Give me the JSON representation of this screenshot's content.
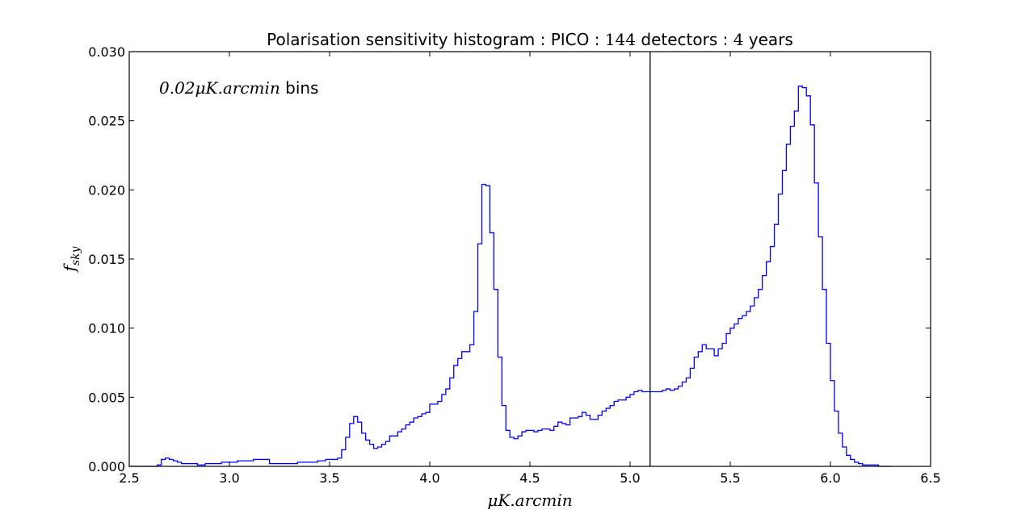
{
  "chart_data": {
    "type": "line",
    "title_parts": [
      "Polarisation sensitivity histogram : PICO : ",
      "144",
      " detectors : ",
      "4",
      " years"
    ],
    "xlabel": "μK.arcmin",
    "ylabel_main": "f",
    "ylabel_sub": "sky",
    "annotation_math": "0.02μK.arcmin",
    "annotation_text": " bins",
    "xlim": [
      2.5,
      6.5
    ],
    "ylim": [
      0.0,
      0.03
    ],
    "xticks": [
      "2.5",
      "3.0",
      "3.5",
      "4.0",
      "4.5",
      "5.0",
      "5.5",
      "6.0",
      "6.5"
    ],
    "yticks": [
      "0.000",
      "0.005",
      "0.010",
      "0.015",
      "0.020",
      "0.025",
      "0.030"
    ],
    "vline_x": 5.1,
    "bin_start": 2.5,
    "bin_width": 0.02,
    "series": [
      {
        "color": "#0000ff",
        "values": [
          0,
          0,
          0,
          0,
          0,
          0,
          0,
          0.0001,
          0.0005,
          0.0006,
          0.0005,
          0.0004,
          0.0003,
          0.0002,
          0.0002,
          0.0002,
          0.0002,
          0.0001,
          0.0001,
          0.0002,
          0.0002,
          0.0002,
          0.0002,
          0.0003,
          0.0003,
          0.0003,
          0.0003,
          0.0004,
          0.0004,
          0.0004,
          0.0004,
          0.0005,
          0.0005,
          0.0005,
          0.0005,
          0.0002,
          0.0002,
          0.0002,
          0.0002,
          0.0002,
          0.0002,
          0.0002,
          0.0003,
          0.0003,
          0.0003,
          0.0003,
          0.0003,
          0.0004,
          0.0004,
          0.0005,
          0.0005,
          0.0005,
          0.0006,
          0.0012,
          0.0021,
          0.0031,
          0.0036,
          0.0032,
          0.0024,
          0.0019,
          0.0016,
          0.0013,
          0.0014,
          0.0016,
          0.0018,
          0.0022,
          0.0022,
          0.0025,
          0.0027,
          0.003,
          0.0032,
          0.0035,
          0.0036,
          0.0038,
          0.0039,
          0.0045,
          0.0045,
          0.0047,
          0.0052,
          0.0056,
          0.0064,
          0.0073,
          0.0078,
          0.0083,
          0.0083,
          0.0088,
          0.0112,
          0.0161,
          0.0204,
          0.0203,
          0.0169,
          0.0128,
          0.0079,
          0.0044,
          0.0026,
          0.0021,
          0.002,
          0.0022,
          0.0025,
          0.0026,
          0.0026,
          0.0025,
          0.0026,
          0.0027,
          0.0027,
          0.0026,
          0.0029,
          0.0032,
          0.0031,
          0.003,
          0.0035,
          0.0035,
          0.0036,
          0.0039,
          0.0037,
          0.0034,
          0.0034,
          0.0037,
          0.004,
          0.0042,
          0.0044,
          0.0047,
          0.0048,
          0.0048,
          0.005,
          0.0052,
          0.0054,
          0.0055,
          0.0054,
          0.0054,
          0.0054,
          0.0054,
          0.0054,
          0.0055,
          0.0056,
          0.0055,
          0.0056,
          0.0058,
          0.0061,
          0.0064,
          0.0071,
          0.0079,
          0.0083,
          0.0088,
          0.0085,
          0.0085,
          0.008,
          0.0085,
          0.0089,
          0.0096,
          0.01,
          0.0103,
          0.0107,
          0.0109,
          0.0112,
          0.0116,
          0.0122,
          0.0128,
          0.0138,
          0.0148,
          0.0159,
          0.0175,
          0.0197,
          0.0214,
          0.0233,
          0.0246,
          0.0257,
          0.0275,
          0.0274,
          0.0268,
          0.0247,
          0.0205,
          0.0166,
          0.0128,
          0.0089,
          0.0062,
          0.004,
          0.0024,
          0.0014,
          0.0008,
          0.0005,
          0.0003,
          0.0002,
          0.0001,
          0.0001,
          0.0001,
          0.0001,
          0,
          0,
          0
        ]
      }
    ]
  }
}
